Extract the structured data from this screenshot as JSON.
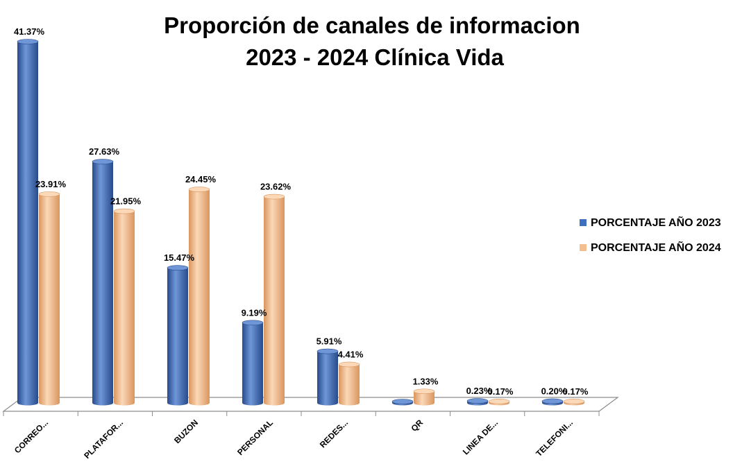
{
  "chart_data": {
    "type": "bar",
    "title_lines": [
      "Proporción de canales de informacion",
      "2023 - 2024 Clínica Vida"
    ],
    "categories": [
      "CORREO...",
      "PLATAFOR...",
      "BUZON",
      "PERSONAL",
      "REDES...",
      "QR",
      "LINEA DE...",
      "TELEFONI..."
    ],
    "series": [
      {
        "name": "PORCENTAJE AÑO 2023",
        "values": [
          41.37,
          27.63,
          15.47,
          9.19,
          5.91,
          0,
          0.23,
          0.2
        ],
        "labels": [
          "41.37%",
          "27.63%",
          "15.47%",
          "9.19%",
          "5.91%",
          "",
          "0.23%",
          "0.20%"
        ],
        "color": "#3f6fbf",
        "color_dark": "#274a8a",
        "color_light": "#6f97d8"
      },
      {
        "name": "PORCENTAJE AÑO 2024",
        "values": [
          23.91,
          21.95,
          24.45,
          23.62,
          4.41,
          1.33,
          0.17,
          0.17
        ],
        "labels": [
          "23.91%",
          "21.95%",
          "24.45%",
          "23.62%",
          "4.41%",
          "1.33%",
          "0.17%",
          "0.17%"
        ],
        "color": "#f5be8e",
        "color_dark": "#d9955d",
        "color_light": "#fbd8b8"
      }
    ],
    "ylim": [
      0,
      41.37
    ],
    "grid": false,
    "legend_position": "right",
    "style": "3d-cylinder"
  }
}
